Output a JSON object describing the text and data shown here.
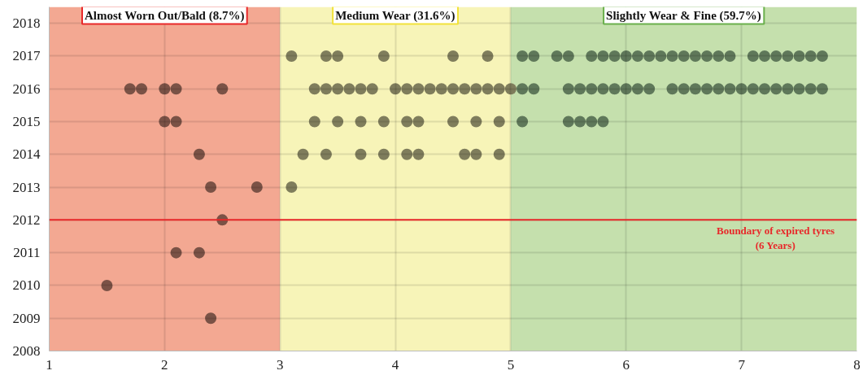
{
  "chart_data": {
    "type": "scatter",
    "xlim": [
      1,
      8
    ],
    "ylim": [
      2008,
      2018.5
    ],
    "xticks": [
      1,
      2,
      3,
      4,
      5,
      6,
      7,
      8
    ],
    "yticks": [
      2008,
      2009,
      2010,
      2011,
      2012,
      2013,
      2014,
      2015,
      2016,
      2017,
      2018
    ],
    "grid": true,
    "marker": "circle",
    "series": [
      {
        "color": "#7a5246",
        "x": [
          1.7,
          1.8,
          2.0,
          2.1,
          2.5,
          2.0,
          2.1,
          2.3,
          2.4,
          2.8,
          2.5,
          2.1,
          2.3,
          1.5,
          2.4
        ],
        "values": [
          2016,
          2016,
          2016,
          2016,
          2016,
          2015,
          2015,
          2014,
          2013,
          2013,
          2012,
          2011,
          2011,
          2010,
          2009
        ]
      },
      {
        "color": "#7f7d5c",
        "x": [
          3.1,
          3.4,
          3.5,
          3.9,
          4.5,
          4.8,
          3.3,
          3.4,
          3.5,
          3.6,
          3.7,
          3.8,
          4.0,
          4.1,
          4.2,
          4.3,
          4.4,
          4.5,
          4.6,
          4.7,
          4.8,
          4.9,
          5.0,
          3.3,
          3.5,
          3.7,
          3.9,
          4.1,
          4.2,
          4.5,
          4.7,
          4.9,
          3.2,
          3.4,
          3.7,
          3.9,
          4.1,
          4.2,
          4.6,
          4.7,
          4.9,
          3.1
        ],
        "values": [
          2017,
          2017,
          2017,
          2017,
          2017,
          2017,
          2016,
          2016,
          2016,
          2016,
          2016,
          2016,
          2016,
          2016,
          2016,
          2016,
          2016,
          2016,
          2016,
          2016,
          2016,
          2016,
          2016,
          2015,
          2015,
          2015,
          2015,
          2015,
          2015,
          2015,
          2015,
          2015,
          2014,
          2014,
          2014,
          2014,
          2014,
          2014,
          2014,
          2014,
          2014,
          2013
        ]
      },
      {
        "color": "#5f785a",
        "x": [
          5.1,
          5.2,
          5.4,
          5.5,
          5.7,
          5.8,
          5.9,
          6.0,
          6.1,
          6.2,
          6.3,
          6.4,
          6.5,
          6.6,
          6.7,
          6.8,
          6.9,
          7.1,
          7.2,
          7.3,
          7.4,
          7.5,
          7.6,
          7.7,
          5.1,
          5.2,
          5.5,
          5.6,
          5.7,
          5.8,
          5.9,
          6.0,
          6.1,
          6.2,
          6.4,
          6.5,
          6.6,
          6.7,
          6.8,
          6.9,
          7.0,
          7.1,
          7.2,
          7.3,
          7.4,
          7.5,
          7.6,
          7.7,
          5.1,
          5.5,
          5.6,
          5.7,
          5.8
        ],
        "values": [
          2017,
          2017,
          2017,
          2017,
          2017,
          2017,
          2017,
          2017,
          2017,
          2017,
          2017,
          2017,
          2017,
          2017,
          2017,
          2017,
          2017,
          2017,
          2017,
          2017,
          2017,
          2017,
          2017,
          2017,
          2016,
          2016,
          2016,
          2016,
          2016,
          2016,
          2016,
          2016,
          2016,
          2016,
          2016,
          2016,
          2016,
          2016,
          2016,
          2016,
          2016,
          2016,
          2016,
          2016,
          2016,
          2016,
          2016,
          2016,
          2015,
          2015,
          2015,
          2015,
          2015
        ]
      }
    ],
    "bands": [
      {
        "axis": "x",
        "from": 1,
        "to": 3,
        "label": "Almost Worn Out/Bald (8.7%)",
        "color": "#f3a892"
      },
      {
        "axis": "x",
        "from": 3,
        "to": 5,
        "label": "Medium Wear (31.6%)",
        "color": "#f7f4b8"
      },
      {
        "axis": "x",
        "from": 5,
        "to": 8,
        "label": "Slightly Wear & Fine (59.7%)",
        "color": "#c5e0ad"
      }
    ],
    "ref_lines": [
      {
        "axis": "y",
        "value": 2012,
        "label": "Boundary of expired tyres\n(6 Years)",
        "color": "#e8282a",
        "line_style": "solid"
      }
    ]
  }
}
